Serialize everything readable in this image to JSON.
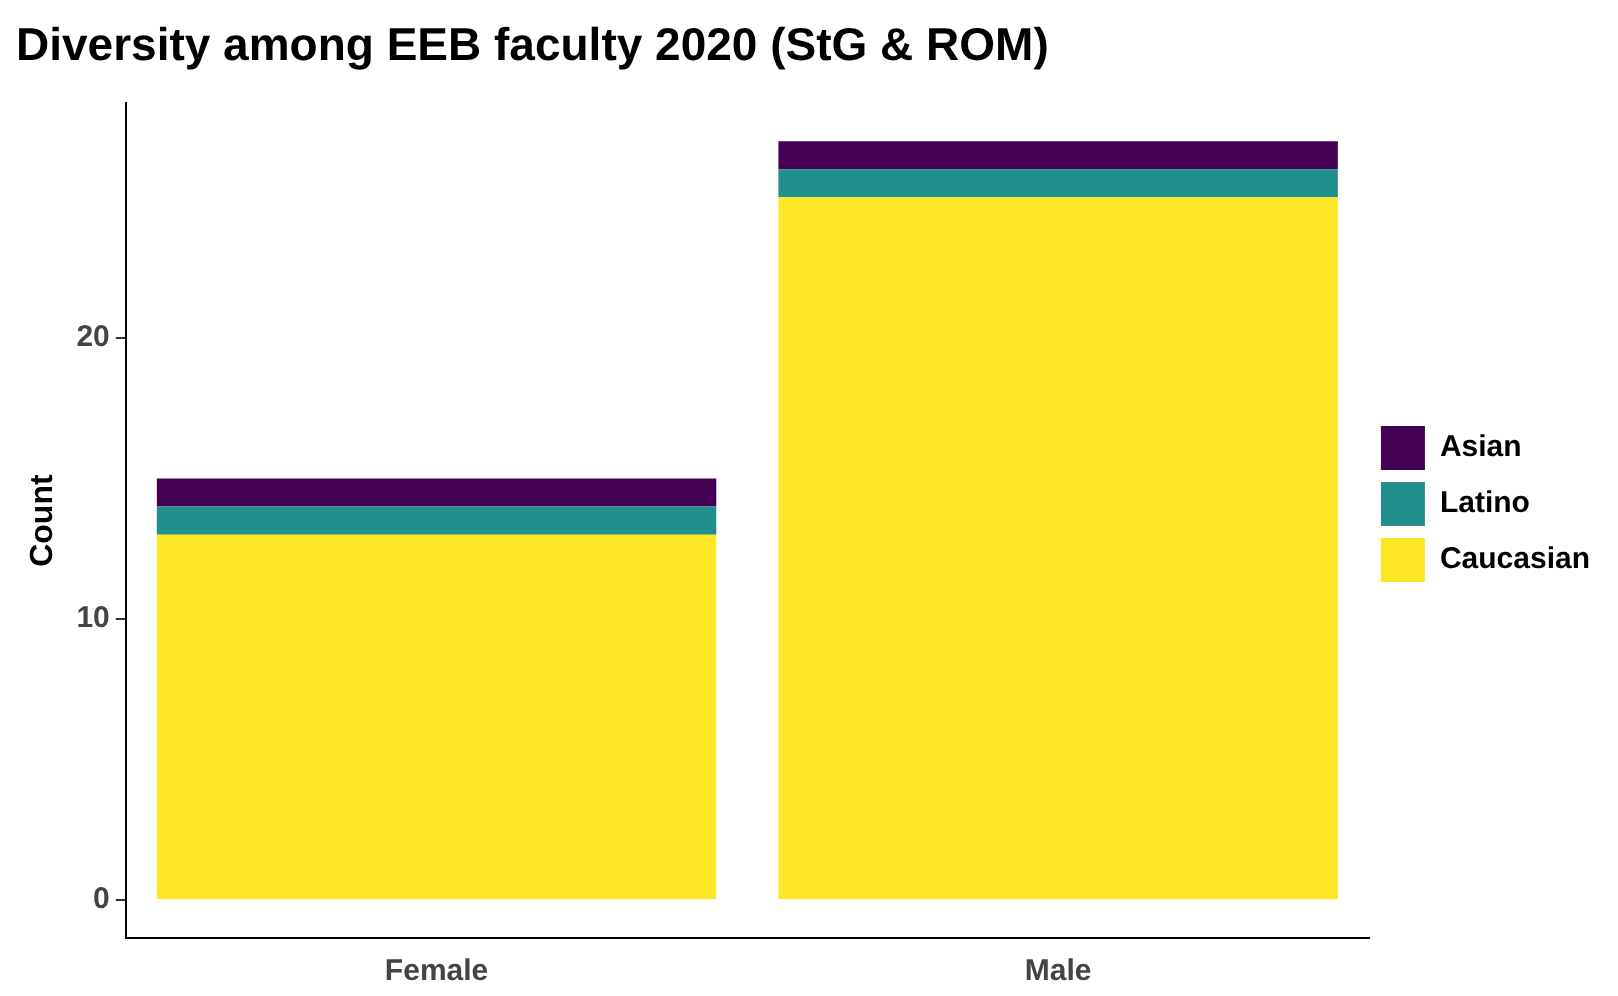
{
  "chart_data": {
    "type": "bar",
    "title": "Diversity among EEB faculty 2020 (StG & ROM)",
    "ylabel": "Count",
    "categories": [
      "Female",
      "Male"
    ],
    "series": [
      {
        "name": "Caucasian",
        "color": "#fde725",
        "values": [
          13,
          25
        ]
      },
      {
        "name": "Latino",
        "color": "#21908c",
        "values": [
          1,
          1
        ]
      },
      {
        "name": "Asian",
        "color": "#440154",
        "values": [
          1,
          1
        ]
      }
    ],
    "stacked": true,
    "ylim": [
      -1.35,
      28.35
    ],
    "yticks": [
      0,
      10,
      20
    ],
    "grid": false,
    "legend": "right"
  }
}
